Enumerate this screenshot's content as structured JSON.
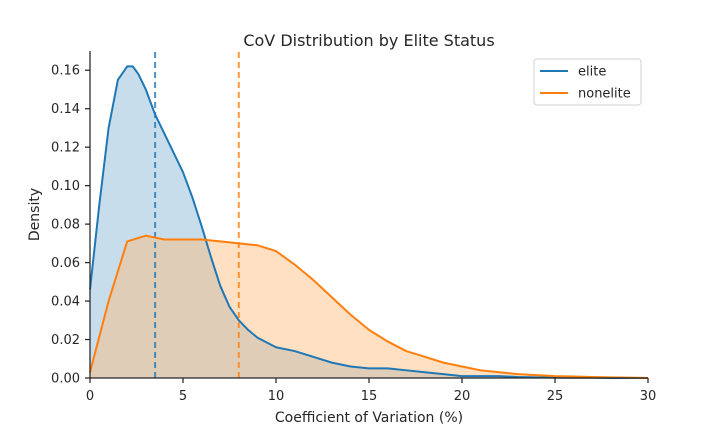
{
  "chart_data": {
    "type": "area",
    "title": "CoV Distribution by Elite Status",
    "xlabel": "Coefficient of Variation (%)",
    "ylabel": "Density",
    "xlim": [
      0,
      30
    ],
    "ylim": [
      0,
      0.17
    ],
    "x_ticks": [
      0,
      5,
      10,
      15,
      20,
      25,
      30
    ],
    "y_ticks": [
      0.0,
      0.02,
      0.04,
      0.06,
      0.08,
      0.1,
      0.12,
      0.14,
      0.16
    ],
    "y_tick_labels": [
      "0.00",
      "0.02",
      "0.04",
      "0.06",
      "0.08",
      "0.10",
      "0.12",
      "0.14",
      "0.16"
    ],
    "grid": false,
    "legend_position": "top-right",
    "series": [
      {
        "name": "elite",
        "color": "#1f77b4",
        "fill_color": "#1f77b4",
        "mean": 3.5,
        "x": [
          0,
          0.5,
          1,
          1.5,
          2,
          2.3,
          2.6,
          3,
          3.5,
          4,
          4.5,
          5,
          5.5,
          6,
          6.5,
          7,
          7.5,
          8,
          8.5,
          9,
          10,
          11,
          12,
          13,
          14,
          15,
          16,
          17,
          18,
          19,
          20,
          21,
          22,
          23,
          24,
          25,
          26,
          27,
          28,
          29,
          30
        ],
        "y": [
          0.046,
          0.09,
          0.13,
          0.155,
          0.162,
          0.162,
          0.158,
          0.15,
          0.137,
          0.127,
          0.117,
          0.107,
          0.094,
          0.079,
          0.063,
          0.048,
          0.037,
          0.03,
          0.025,
          0.021,
          0.016,
          0.014,
          0.011,
          0.008,
          0.006,
          0.005,
          0.005,
          0.004,
          0.003,
          0.002,
          0.001,
          0.001,
          0.001,
          0.0005,
          0.0003,
          0.0002,
          0.0001,
          0.0001,
          0.0,
          0.0,
          0.0
        ]
      },
      {
        "name": "nonelite",
        "color": "#ff7f0e",
        "fill_color": "#ffbb78",
        "mean": 8.0,
        "x": [
          0,
          1,
          2,
          3,
          3.5,
          4,
          4.5,
          5,
          6,
          7,
          8,
          9,
          10,
          11,
          12,
          13,
          14,
          15,
          16,
          17,
          18,
          19,
          20,
          21,
          22,
          23,
          24,
          25,
          26,
          27,
          28,
          29,
          30
        ],
        "y": [
          0.003,
          0.04,
          0.071,
          0.074,
          0.073,
          0.072,
          0.072,
          0.072,
          0.072,
          0.071,
          0.07,
          0.069,
          0.066,
          0.059,
          0.051,
          0.042,
          0.033,
          0.025,
          0.019,
          0.014,
          0.011,
          0.008,
          0.006,
          0.004,
          0.003,
          0.002,
          0.0015,
          0.001,
          0.0008,
          0.0005,
          0.0003,
          0.0002,
          0.0
        ]
      }
    ]
  }
}
